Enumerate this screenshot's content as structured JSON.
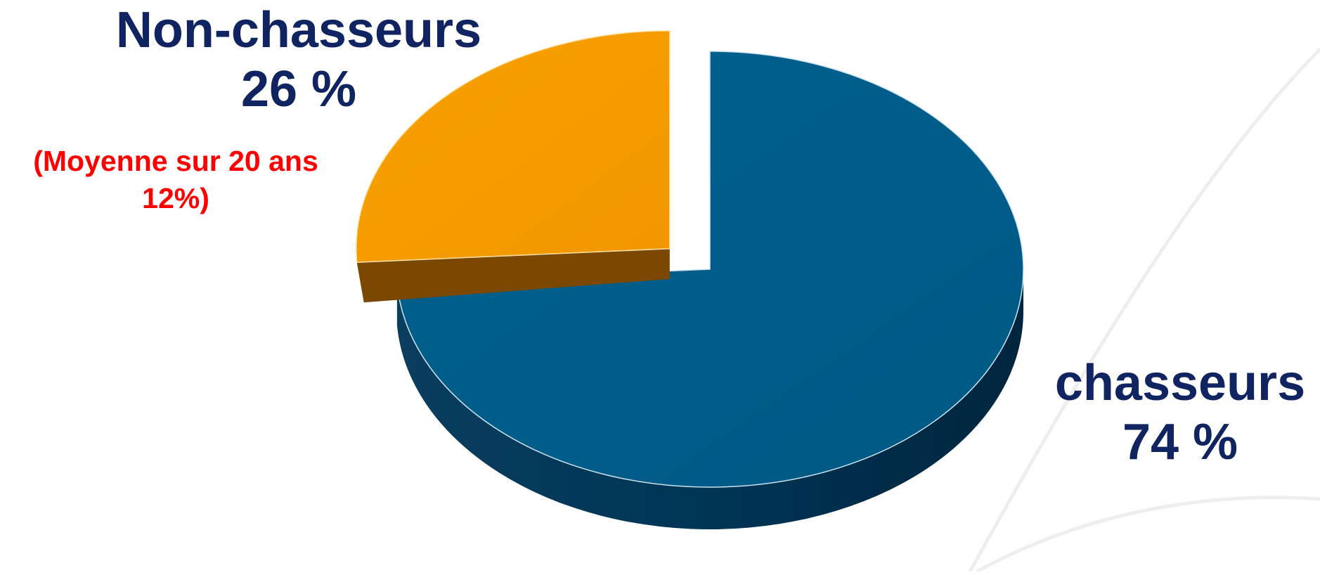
{
  "chart_data": {
    "type": "pie",
    "title": "",
    "categories": [
      "Non-chasseurs",
      "chasseurs"
    ],
    "values": [
      26,
      74
    ],
    "value_labels": [
      "26 %",
      "74 %"
    ],
    "colors": [
      "#f59b00",
      "#005b8a"
    ],
    "side_colors": [
      "#7a4800",
      "#003556"
    ],
    "exploded_slice": "Non-chasseurs",
    "legend": "none",
    "annotation": {
      "text": "(Moyenne sur 20 ans 12%)",
      "color": "#ff0000"
    }
  }
}
